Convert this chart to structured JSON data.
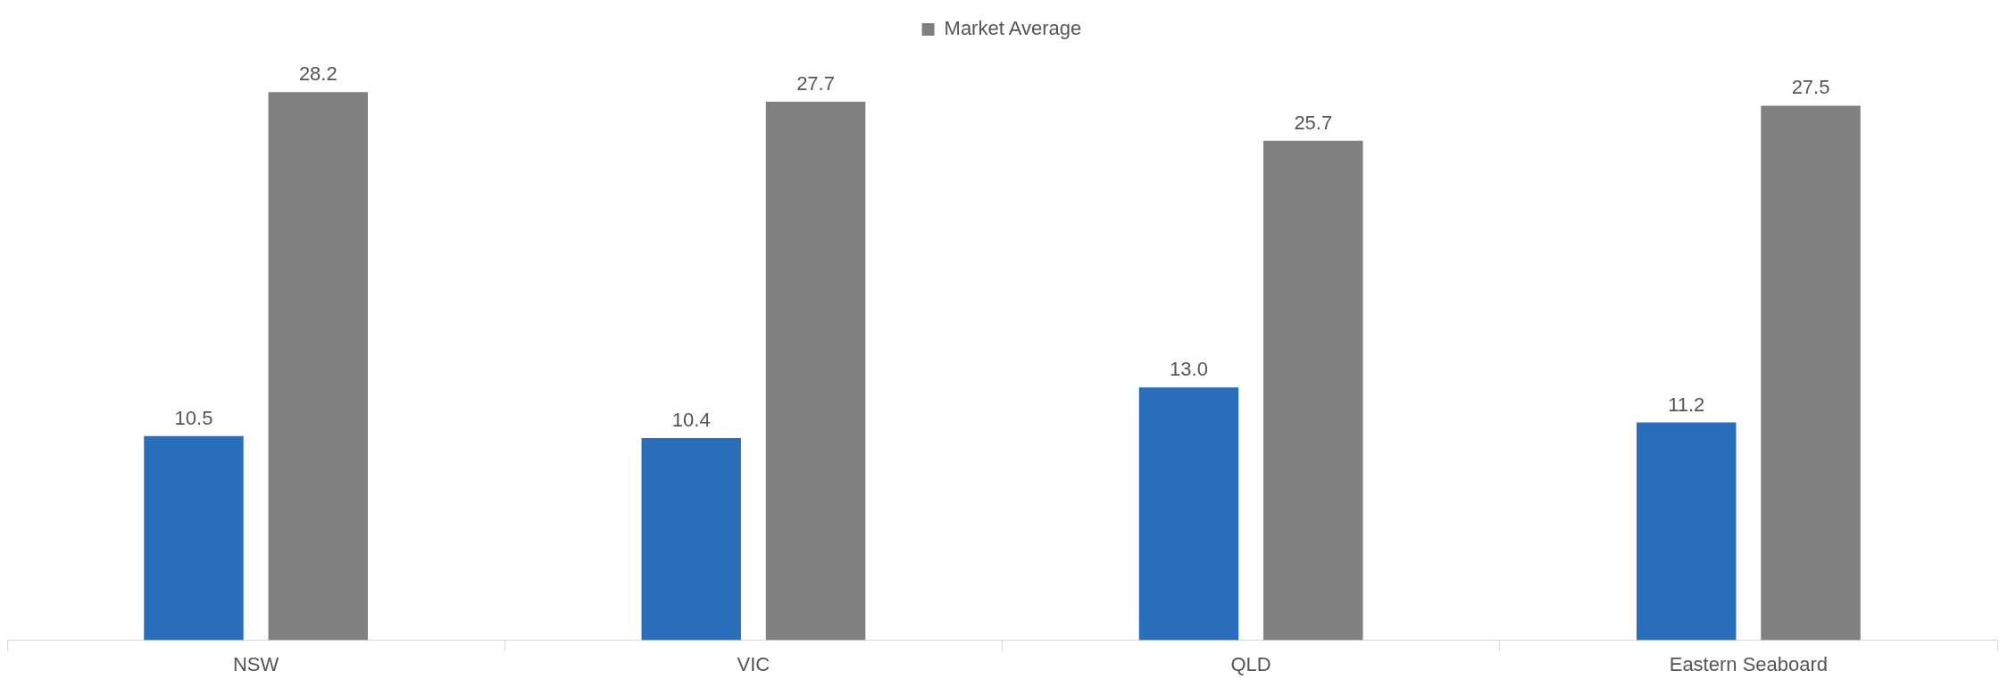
{
  "chart_data": {
    "type": "bar",
    "categories": [
      "NSW",
      "VIC",
      "QLD",
      "Eastern Seaboard"
    ],
    "series": [
      {
        "color": "#2a6ebb",
        "values": [
          10.5,
          10.4,
          13.0,
          11.2
        ],
        "value_labels": [
          "10.5",
          "10.4",
          "13.0",
          "11.2"
        ]
      },
      {
        "name": "Market Average",
        "color": "#808080",
        "values": [
          28.2,
          27.7,
          25.7,
          27.5
        ],
        "value_labels": [
          "28.2",
          "27.7",
          "25.7",
          "27.5"
        ]
      }
    ],
    "grid": false,
    "legend": "top"
  }
}
